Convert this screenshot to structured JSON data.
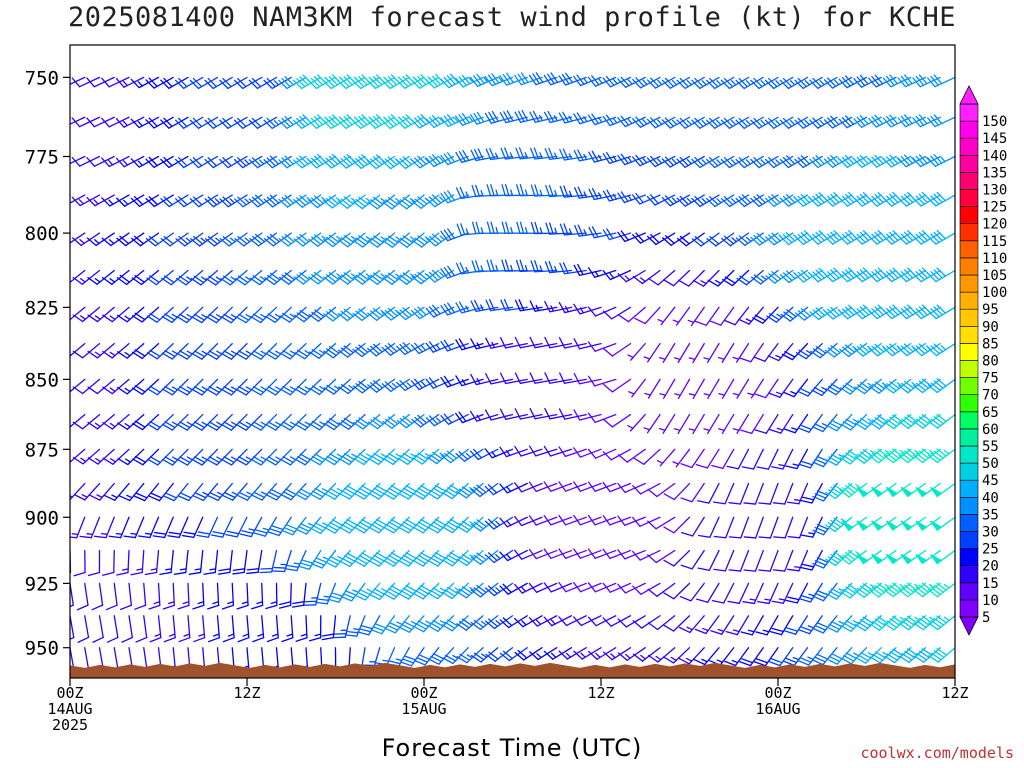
{
  "chart_data": {
    "type": "wind-barb profile",
    "title": "2025081400 NAM3KM forecast wind profile (kt) for KCHE",
    "xlabel": "Forecast Time (UTC)",
    "ylabel": "",
    "credit": "coolwx.com/models",
    "y_ticks": [
      "750",
      "775",
      "800",
      "825",
      "850",
      "875",
      "900",
      "925",
      "950"
    ],
    "y_range_hPa": [
      740,
      962
    ],
    "x_range_hours": [
      0,
      60
    ],
    "x_ticks": [
      {
        "hour": 0,
        "line1": "00Z",
        "line2": "14AUG",
        "line3": "2025"
      },
      {
        "hour": 12,
        "line1": "12Z",
        "line2": "",
        "line3": ""
      },
      {
        "hour": 24,
        "line1": "00Z",
        "line2": "15AUG",
        "line3": ""
      },
      {
        "hour": 36,
        "line1": "12Z",
        "line2": "",
        "line3": ""
      },
      {
        "hour": 48,
        "line1": "00Z",
        "line2": "16AUG",
        "line3": ""
      },
      {
        "hour": 60,
        "line1": "12Z",
        "line2": "",
        "line3": ""
      }
    ],
    "colorbar": {
      "levels": [
        5,
        10,
        15,
        20,
        25,
        30,
        35,
        40,
        45,
        50,
        55,
        60,
        65,
        70,
        75,
        80,
        85,
        90,
        95,
        100,
        105,
        110,
        115,
        120,
        125,
        130,
        135,
        140,
        145,
        150
      ],
      "colors": [
        "#8000ff",
        "#6000ff",
        "#3000ff",
        "#0000ff",
        "#0040ff",
        "#0060ff",
        "#0090ff",
        "#00b0ff",
        "#00d0e0",
        "#00e8c8",
        "#00f0a0",
        "#00ff60",
        "#30ff00",
        "#70ff00",
        "#c0ff00",
        "#ffff00",
        "#ffe000",
        "#ffc800",
        "#ffb000",
        "#ff9800",
        "#ff8000",
        "#ff6000",
        "#ff3000",
        "#ff0000",
        "#ff0040",
        "#ff0070",
        "#ff00a0",
        "#ff00c8",
        "#ff00e8",
        "#ff20ff"
      ]
    },
    "terrain_color": "#a0522d",
    "terrain_top_hPa": 957,
    "wind_samples": [
      {
        "hour": 0,
        "p": 750,
        "dir": 245,
        "spd": 10
      },
      {
        "hour": 0,
        "p": 850,
        "dir": 230,
        "spd": 12
      },
      {
        "hour": 0,
        "p": 950,
        "dir": 170,
        "spd": 10
      },
      {
        "hour": 12,
        "p": 750,
        "dir": 240,
        "spd": 20
      },
      {
        "hour": 12,
        "p": 850,
        "dir": 225,
        "spd": 25
      },
      {
        "hour": 12,
        "p": 950,
        "dir": 175,
        "spd": 15
      },
      {
        "hour": 20,
        "p": 750,
        "dir": 240,
        "spd": 45
      },
      {
        "hour": 24,
        "p": 800,
        "dir": 230,
        "spd": 35
      },
      {
        "hour": 24,
        "p": 900,
        "dir": 225,
        "spd": 40
      },
      {
        "hour": 30,
        "p": 800,
        "dir": 270,
        "spd": 25
      },
      {
        "hour": 34,
        "p": 850,
        "dir": 260,
        "spd": 10
      },
      {
        "hour": 36,
        "p": 900,
        "dir": 250,
        "spd": 8
      },
      {
        "hour": 42,
        "p": 850,
        "dir": 210,
        "spd": 5
      },
      {
        "hour": 48,
        "p": 750,
        "dir": 240,
        "spd": 25
      },
      {
        "hour": 48,
        "p": 900,
        "dir": 200,
        "spd": 10
      },
      {
        "hour": 56,
        "p": 800,
        "dir": 240,
        "spd": 40
      },
      {
        "hour": 56,
        "p": 900,
        "dir": 235,
        "spd": 50
      },
      {
        "hour": 60,
        "p": 750,
        "dir": 245,
        "spd": 30
      }
    ]
  }
}
